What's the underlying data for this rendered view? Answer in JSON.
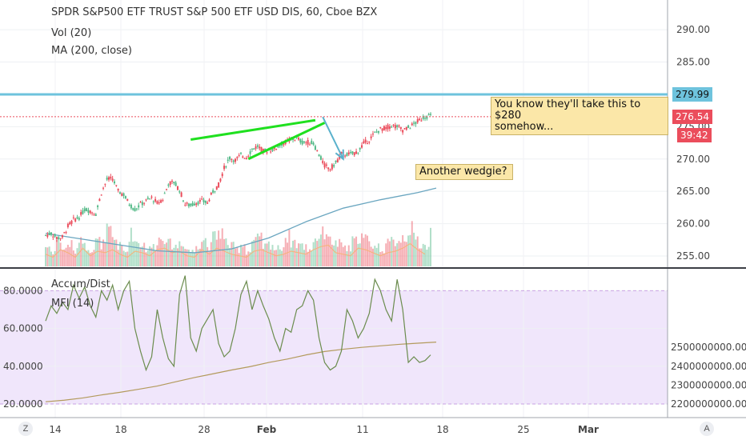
{
  "legend": {
    "title": "SPDR S&P500 ETF TRUST S&P 500 ETF USD DIS, 60, Cboe BZX",
    "vol": "Vol (20)",
    "ma": "MA (200, close)",
    "accum": "Accum/Dist",
    "mfi": "MFI (14)"
  },
  "price_tags": {
    "resistance": "279.99",
    "last": "276.54",
    "countdown": "39:42"
  },
  "notes": {
    "n1_line1": "You know they'll take this to $280",
    "n1_line2": "somehow...",
    "n2": "Another wedgie?"
  },
  "buttons": {
    "left": "Z",
    "right": "A"
  },
  "colors": {
    "up": "#53b987",
    "down": "#eb4d5c",
    "resistance": "#6ec3dd",
    "ma": "#6aa6c0",
    "wedge": "#1fe01f",
    "arrow": "#5ab1cc",
    "accum": "#b39a5c",
    "mfi": "#6b8c4e",
    "mfi_band": "#f0e6fb"
  },
  "chart_data": [
    {
      "type": "candlestick",
      "title": "SPDR S&P500 ETF TRUST S&P 500 ETF USD DIS, 60, Cboe BZX",
      "xlabel": "",
      "ylabel": "",
      "x_ticks": [
        "14",
        "18",
        "28",
        "Feb",
        "11",
        "18",
        "25",
        "Mar"
      ],
      "y_ticks": [
        "255.00",
        "260.00",
        "265.00",
        "270.00",
        "275.00",
        "280.00",
        "285.00",
        "290.00"
      ],
      "ylim": [
        253.5,
        292.5
      ],
      "price_path": [
        [
          0,
          258.2
        ],
        [
          3,
          258.5
        ],
        [
          6,
          257.8
        ],
        [
          9,
          257.9
        ],
        [
          12,
          259.6
        ],
        [
          15,
          260.6
        ],
        [
          18,
          261.0
        ],
        [
          21,
          262.2
        ],
        [
          24,
          262.0
        ],
        [
          27,
          261.5
        ],
        [
          30,
          264.8
        ],
        [
          33,
          266.8
        ],
        [
          36,
          267.0
        ],
        [
          39,
          265.0
        ],
        [
          42,
          264.5
        ],
        [
          45,
          263.0
        ],
        [
          48,
          262.2
        ],
        [
          51,
          263.0
        ],
        [
          54,
          263.5
        ],
        [
          57,
          264.0
        ],
        [
          60,
          263.2
        ],
        [
          63,
          263.8
        ],
        [
          66,
          266.2
        ],
        [
          69,
          266.4
        ],
        [
          72,
          265.2
        ],
        [
          75,
          263.0
        ],
        [
          78,
          262.8
        ],
        [
          81,
          263.3
        ],
        [
          84,
          263.5
        ],
        [
          87,
          263.2
        ],
        [
          90,
          265.0
        ],
        [
          93,
          266.0
        ],
        [
          96,
          268.6
        ],
        [
          99,
          270.2
        ],
        [
          102,
          269.8
        ],
        [
          105,
          270.6
        ],
        [
          108,
          270.3
        ],
        [
          111,
          271.5
        ],
        [
          114,
          272.0
        ],
        [
          117,
          271.2
        ],
        [
          120,
          271.4
        ],
        [
          123,
          271.5
        ],
        [
          126,
          272.2
        ],
        [
          129,
          272.6
        ],
        [
          132,
          273.0
        ],
        [
          135,
          273.2
        ],
        [
          138,
          272.6
        ],
        [
          141,
          272.6
        ],
        [
          144,
          272.4
        ],
        [
          147,
          270.6
        ],
        [
          150,
          269.0
        ],
        [
          153,
          268.5
        ],
        [
          156,
          269.4
        ],
        [
          159,
          270.8
        ],
        [
          162,
          270.7
        ],
        [
          165,
          270.8
        ],
        [
          168,
          271.2
        ],
        [
          171,
          272.4
        ],
        [
          174,
          273.0
        ],
        [
          177,
          274.0
        ],
        [
          180,
          274.6
        ],
        [
          183,
          274.8
        ],
        [
          186,
          275.2
        ],
        [
          189,
          275.0
        ],
        [
          192,
          274.5
        ],
        [
          195,
          274.8
        ],
        [
          198,
          275.4
        ],
        [
          201,
          276.0
        ],
        [
          204,
          276.6
        ],
        [
          207,
          276.6
        ]
      ],
      "annotations": {
        "resistance_level": 279.99,
        "last_price": 276.54,
        "wedge_upper": [
          [
            78,
            273.0
          ],
          [
            145,
            276.0
          ]
        ],
        "wedge_lower": [
          [
            109,
            270.0
          ],
          [
            150,
            275.6
          ]
        ],
        "wedge_apex": [
          149,
          276.5
        ],
        "arrow_end": [
          160,
          270.0
        ]
      }
    },
    {
      "type": "bar",
      "name": "Vol (20)",
      "values_relative": [
        0.4,
        0.3,
        0.55,
        0.35,
        0.45,
        0.3,
        0.6,
        0.4,
        0.35,
        0.5,
        0.45,
        0.7,
        0.55,
        0.4,
        0.3,
        0.65,
        0.5,
        0.45,
        0.35,
        0.4,
        0.55,
        0.6,
        0.45,
        0.4,
        0.5,
        0.35,
        0.3,
        0.45,
        0.55,
        0.4,
        0.6,
        0.7,
        0.5,
        0.4,
        0.35,
        0.45,
        0.3,
        0.5,
        0.55,
        0.4,
        0.45,
        0.35,
        0.4,
        0.6,
        0.5,
        0.45,
        0.4,
        0.35,
        0.55,
        0.65,
        0.7,
        0.5,
        0.45,
        0.4,
        0.35,
        0.5,
        0.6,
        0.55,
        0.45,
        0.4,
        0.35,
        0.45,
        0.5,
        0.55,
        0.6,
        0.75,
        0.55,
        0.45,
        0.4,
        0.7
      ]
    },
    {
      "type": "line",
      "name": "MA (200, close)",
      "x": [
        0,
        20,
        40,
        60,
        80,
        100,
        120,
        140,
        160,
        180,
        200,
        210
      ],
      "y": [
        258.5,
        257.6,
        256.7,
        255.8,
        255.5,
        256.1,
        257.8,
        260.3,
        262.4,
        263.7,
        264.8,
        265.5
      ]
    },
    {
      "type": "line",
      "title": "Accum/Dist, MFI (14)",
      "left_y_ticks": [
        "20.0000",
        "40.0000",
        "60.0000",
        "80.0000"
      ],
      "right_y_ticks": [
        "2200000000.0000",
        "2300000000.0000",
        "2400000000.0000",
        "2500000000.0000"
      ],
      "mfi_band": [
        20,
        80
      ],
      "series": [
        {
          "name": "MFI (14)",
          "x": [
            0,
            3,
            6,
            9,
            12,
            15,
            18,
            21,
            24,
            27,
            30,
            33,
            36,
            39,
            42,
            45,
            48,
            51,
            54,
            57,
            60,
            63,
            66,
            69,
            72,
            75,
            78,
            81,
            84,
            87,
            90,
            93,
            96,
            99,
            102,
            105,
            108,
            111,
            114,
            117,
            120,
            123,
            126,
            129,
            132,
            135,
            138,
            141,
            144,
            147,
            150,
            153,
            156,
            159,
            162,
            165,
            168,
            171,
            174,
            177,
            180,
            183,
            186,
            189,
            192,
            195,
            198,
            201,
            204,
            207
          ],
          "y": [
            64,
            72,
            68,
            74,
            70,
            83,
            76,
            82,
            72,
            66,
            80,
            75,
            83,
            70,
            80,
            85,
            60,
            48,
            38,
            45,
            70,
            55,
            44,
            40,
            78,
            88,
            55,
            48,
            60,
            65,
            70,
            52,
            45,
            48,
            60,
            78,
            85,
            70,
            80,
            72,
            65,
            55,
            48,
            60,
            58,
            70,
            72,
            80,
            75,
            55,
            42,
            38,
            40,
            48,
            70,
            64,
            55,
            60,
            68,
            86,
            80,
            70,
            64,
            86,
            70,
            42,
            45,
            42,
            43,
            46
          ]
        },
        {
          "name": "Accum/Dist",
          "x": [
            0,
            10,
            20,
            30,
            40,
            50,
            60,
            70,
            80,
            90,
            100,
            110,
            120,
            130,
            140,
            150,
            160,
            170,
            180,
            190,
            200,
            210
          ],
          "y": [
            2212000000,
            2220000000,
            2232000000,
            2248000000,
            2262000000,
            2278000000,
            2295000000,
            2318000000,
            2340000000,
            2360000000,
            2380000000,
            2398000000,
            2420000000,
            2438000000,
            2460000000,
            2478000000,
            2490000000,
            2500000000,
            2508000000,
            2516000000,
            2522000000,
            2528000000
          ]
        }
      ]
    }
  ]
}
